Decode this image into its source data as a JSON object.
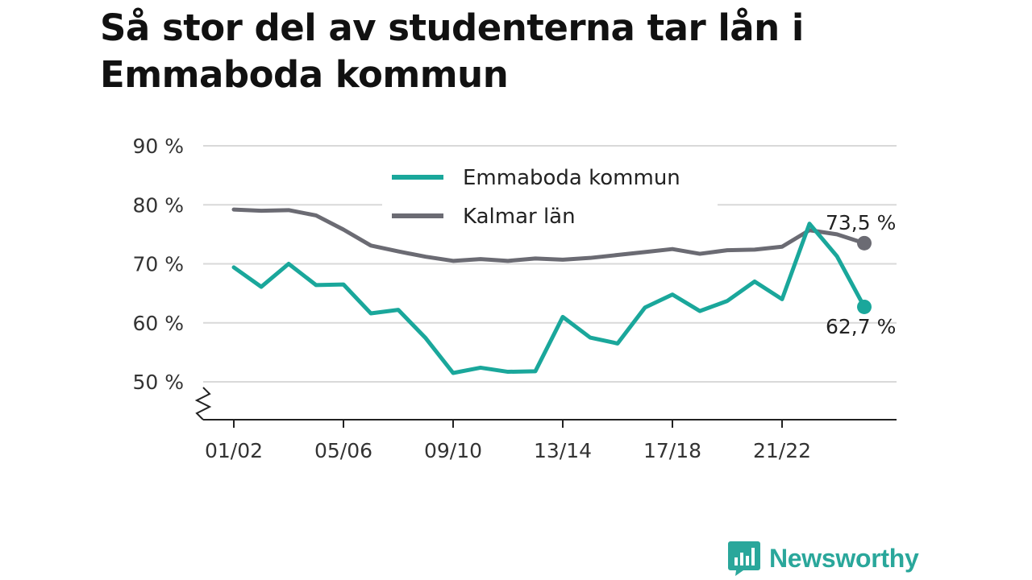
{
  "chart_data": {
    "type": "line",
    "title": "Så stor del av studenterna tar lån i Emmaboda kommun",
    "xlabel": "",
    "ylabel": "",
    "ylim": [
      50,
      90
    ],
    "y_ticks": [
      "90 %",
      "80 %",
      "70 %",
      "60 %",
      "50 %"
    ],
    "y_tick_values": [
      90,
      80,
      70,
      60,
      50
    ],
    "x": [
      "01/02",
      "02/03",
      "03/04",
      "04/05",
      "05/06",
      "06/07",
      "07/08",
      "08/09",
      "09/10",
      "10/11",
      "11/12",
      "12/13",
      "13/14",
      "14/15",
      "15/16",
      "16/17",
      "17/18",
      "18/19",
      "19/20",
      "20/21",
      "21/22",
      "22/23",
      "23/24",
      "24/25"
    ],
    "x_tick_labels": [
      "01/02",
      "05/06",
      "09/10",
      "13/14",
      "17/18",
      "21/22"
    ],
    "grid": true,
    "legend_position": "top",
    "series": [
      {
        "name": "Emmaboda kommun",
        "color": "#1aa79b",
        "values": [
          69.4,
          66.1,
          70.0,
          66.4,
          66.5,
          61.6,
          62.2,
          57.4,
          51.5,
          52.4,
          51.7,
          51.8,
          61.0,
          57.5,
          56.5,
          62.6,
          64.8,
          62.0,
          63.7,
          67.0,
          64.0,
          76.8,
          71.3,
          62.7
        ],
        "end_label": "62,7 %"
      },
      {
        "name": "Kalmar län",
        "color": "#6b6b73",
        "values": [
          79.2,
          79.0,
          79.1,
          78.2,
          75.8,
          73.1,
          72.1,
          71.2,
          70.5,
          70.8,
          70.5,
          70.9,
          70.7,
          71.0,
          71.5,
          72.0,
          72.5,
          71.7,
          72.3,
          72.4,
          72.9,
          75.7,
          75.0,
          73.5
        ],
        "end_label": "73,5 %"
      }
    ]
  },
  "brand": {
    "name": "Newsworthy",
    "color": "#2aa79b",
    "icon": "bar-chart-speech-bubble-icon"
  }
}
